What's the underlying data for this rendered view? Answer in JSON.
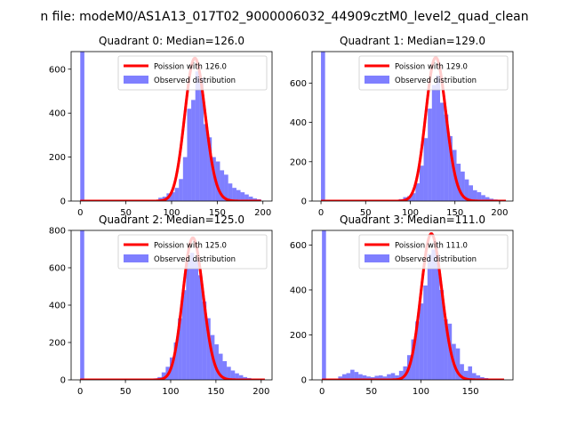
{
  "figure": {
    "suptitle": "n file: modeM0/AS1A13_017T02_9000006032_44909cztM0_level2_quad_clean"
  },
  "colors": {
    "hist": "#0000ff",
    "poisson": "#ff0000"
  },
  "chart_data": [
    {
      "type": "bar",
      "title": "Quadrant 0: Median=126.0",
      "xlabel": "",
      "ylabel": "",
      "xlim": [
        -10,
        210
      ],
      "ylim": [
        0,
        680
      ],
      "xticks": [
        0,
        50,
        100,
        150,
        200
      ],
      "yticks": [
        0,
        200,
        400,
        600
      ],
      "legend": {
        "position": "upper right",
        "entries": [
          "Poission with 126.0",
          "Observed distribution"
        ]
      },
      "series": [
        {
          "name": "Observed distribution",
          "bin_width": 4.5,
          "bars": [
            [
              0,
              680
            ],
            [
              4.5,
              1
            ],
            [
              13.5,
              2
            ],
            [
              22.5,
              3
            ],
            [
              36,
              4
            ],
            [
              49.5,
              3
            ],
            [
              58.5,
              3
            ],
            [
              67.5,
              3
            ],
            [
              76.5,
              4
            ],
            [
              81,
              5
            ],
            [
              85.5,
              15
            ],
            [
              90,
              20
            ],
            [
              94.5,
              35
            ],
            [
              99,
              40
            ],
            [
              103.5,
              60
            ],
            [
              108,
              100
            ],
            [
              112.5,
              200
            ],
            [
              117,
              420
            ],
            [
              121.5,
              460
            ],
            [
              126,
              590
            ],
            [
              130.5,
              560
            ],
            [
              135,
              350
            ],
            [
              139.5,
              290
            ],
            [
              144,
              200
            ],
            [
              148.5,
              180
            ],
            [
              153,
              140
            ],
            [
              157.5,
              120
            ],
            [
              162,
              80
            ],
            [
              166.5,
              60
            ],
            [
              171,
              50
            ],
            [
              175.5,
              40
            ],
            [
              180,
              30
            ],
            [
              184.5,
              20
            ],
            [
              189,
              12
            ],
            [
              193.5,
              8
            ]
          ]
        },
        {
          "name": "Poission with 126.0",
          "lambda": 126.0,
          "scale": 650,
          "x_range": [
            0,
            198
          ]
        }
      ]
    },
    {
      "type": "bar",
      "title": "Quadrant 1: Median=129.0",
      "xlabel": "",
      "ylabel": "",
      "xlim": [
        -10,
        215
      ],
      "ylim": [
        0,
        760
      ],
      "xticks": [
        0,
        50,
        100,
        150,
        200
      ],
      "yticks": [
        0,
        200,
        400,
        600
      ],
      "legend": {
        "position": "upper right",
        "entries": [
          "Poission with 129.0",
          "Observed distribution"
        ]
      },
      "series": [
        {
          "name": "Observed distribution",
          "bin_width": 4.6,
          "bars": [
            [
              0,
              760
            ],
            [
              4.6,
              1
            ],
            [
              18.4,
              2
            ],
            [
              36.8,
              2
            ],
            [
              55.2,
              2
            ],
            [
              73.6,
              3
            ],
            [
              82.8,
              6
            ],
            [
              87.4,
              10
            ],
            [
              92,
              20
            ],
            [
              96.6,
              25
            ],
            [
              101.2,
              40
            ],
            [
              105.8,
              90
            ],
            [
              110.4,
              180
            ],
            [
              115,
              320
            ],
            [
              119.6,
              470
            ],
            [
              124.2,
              590
            ],
            [
              128.8,
              640
            ],
            [
              133.4,
              500
            ],
            [
              138,
              440
            ],
            [
              142.6,
              330
            ],
            [
              147.2,
              260
            ],
            [
              151.8,
              190
            ],
            [
              156.4,
              150
            ],
            [
              161,
              110
            ],
            [
              165.6,
              80
            ],
            [
              170.2,
              55
            ],
            [
              174.8,
              45
            ],
            [
              179.4,
              30
            ],
            [
              184,
              20
            ],
            [
              188.6,
              12
            ],
            [
              193.2,
              8
            ],
            [
              197.8,
              5
            ]
          ]
        },
        {
          "name": "Poission with 129.0",
          "lambda": 129.0,
          "scale": 730,
          "x_range": [
            0,
            207
          ]
        }
      ]
    },
    {
      "type": "bar",
      "title": "Quadrant 2: Median=125.0",
      "xlabel": "",
      "ylabel": "",
      "xlim": [
        -10,
        212
      ],
      "ylim": [
        0,
        800
      ],
      "xticks": [
        0,
        50,
        100,
        150,
        200
      ],
      "yticks": [
        0,
        200,
        400,
        600,
        800
      ],
      "legend": {
        "position": "upper right",
        "entries": [
          "Poission with 125.0",
          "Observed distribution"
        ]
      },
      "series": [
        {
          "name": "Observed distribution",
          "bin_width": 4.5,
          "bars": [
            [
              0,
              800
            ],
            [
              4.5,
              1
            ],
            [
              13.5,
              2
            ],
            [
              27,
              2
            ],
            [
              45,
              2
            ],
            [
              63,
              3
            ],
            [
              76.5,
              5
            ],
            [
              81,
              8
            ],
            [
              85.5,
              15
            ],
            [
              90,
              40
            ],
            [
              94.5,
              70
            ],
            [
              99,
              120
            ],
            [
              103.5,
              200
            ],
            [
              108,
              330
            ],
            [
              112.5,
              480
            ],
            [
              117,
              640
            ],
            [
              121.5,
              680
            ],
            [
              126,
              640
            ],
            [
              130.5,
              560
            ],
            [
              135,
              420
            ],
            [
              139.5,
              330
            ],
            [
              144,
              240
            ],
            [
              148.5,
              190
            ],
            [
              153,
              140
            ],
            [
              157.5,
              100
            ],
            [
              162,
              70
            ],
            [
              166.5,
              50
            ],
            [
              171,
              35
            ],
            [
              175.5,
              25
            ],
            [
              180,
              15
            ],
            [
              184.5,
              10
            ],
            [
              189,
              6
            ]
          ]
        },
        {
          "name": "Poission with 125.0",
          "lambda": 125.0,
          "scale": 760,
          "x_range": [
            0,
            204
          ]
        }
      ]
    },
    {
      "type": "bar",
      "title": "Quadrant 3: Median=111.0",
      "xlabel": "",
      "ylabel": "",
      "xlim": [
        -10,
        193
      ],
      "ylim": [
        0,
        665
      ],
      "xticks": [
        0,
        50,
        100,
        150
      ],
      "yticks": [
        0,
        200,
        400,
        600
      ],
      "legend": {
        "position": "upper right",
        "entries": [
          "Poission with 111.0",
          "Observed distribution"
        ]
      },
      "series": [
        {
          "name": "Observed distribution",
          "bin_width": 4.1,
          "bars": [
            [
              0,
              665
            ],
            [
              4.1,
              2
            ],
            [
              12.3,
              5
            ],
            [
              16.4,
              15
            ],
            [
              20.5,
              25
            ],
            [
              24.6,
              30
            ],
            [
              28.7,
              45
            ],
            [
              32.8,
              35
            ],
            [
              36.9,
              25
            ],
            [
              41,
              20
            ],
            [
              45.1,
              15
            ],
            [
              49.2,
              12
            ],
            [
              53.3,
              18
            ],
            [
              57.4,
              20
            ],
            [
              61.5,
              15
            ],
            [
              65.6,
              25
            ],
            [
              69.7,
              30
            ],
            [
              73.8,
              20
            ],
            [
              77.9,
              40
            ],
            [
              82,
              60
            ],
            [
              86.1,
              110
            ],
            [
              90.2,
              180
            ],
            [
              94.3,
              260
            ],
            [
              98.4,
              340
            ],
            [
              102.5,
              420
            ],
            [
              106.6,
              560
            ],
            [
              110.7,
              580
            ],
            [
              114.8,
              560
            ],
            [
              118.9,
              400
            ],
            [
              123,
              270
            ],
            [
              127.1,
              250
            ],
            [
              131.2,
              160
            ],
            [
              135.3,
              140
            ],
            [
              139.4,
              70
            ],
            [
              143.5,
              40
            ],
            [
              147.6,
              60
            ],
            [
              151.7,
              30
            ],
            [
              155.8,
              20
            ],
            [
              159.9,
              12
            ],
            [
              164,
              8
            ],
            [
              168.1,
              5
            ]
          ]
        },
        {
          "name": "Poission with 111.0",
          "lambda": 111.0,
          "scale": 650,
          "x_range": [
            0,
            184
          ]
        }
      ]
    }
  ]
}
